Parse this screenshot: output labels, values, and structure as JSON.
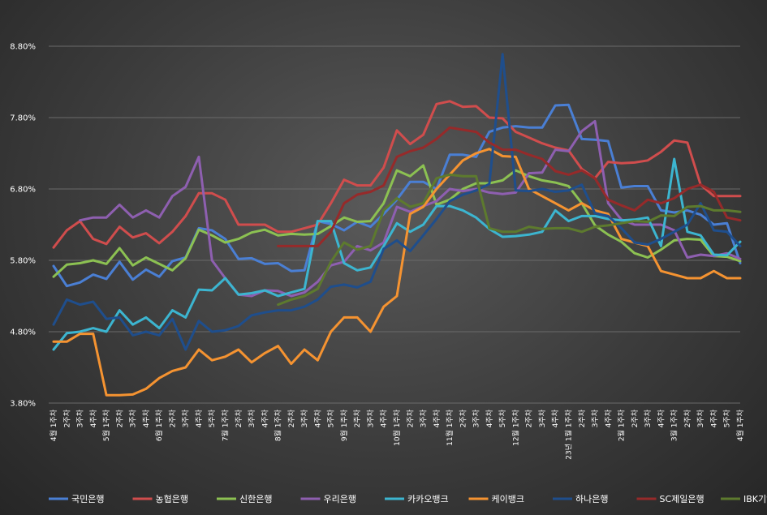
{
  "chart_data": {
    "type": "line",
    "title": "",
    "xlabel": "",
    "ylabel": "",
    "ylim": [
      3.8,
      8.8
    ],
    "yticks": [
      "3.80%",
      "4.80%",
      "5.80%",
      "6.80%",
      "7.80%",
      "8.80%"
    ],
    "grid": true,
    "legend_position": "bottom",
    "x": [
      "4월 1주차",
      "2주차",
      "3주차",
      "4주차",
      "5월 1주차",
      "2주차",
      "3주차",
      "4주차",
      "6월 1주차",
      "2주차",
      "3주차",
      "4주차",
      "5주차",
      "7월 1주차",
      "2주차",
      "3주차",
      "4주차",
      "8월 1주차",
      "2주차",
      "3주차",
      "4주차",
      "5주차",
      "9월 1주차",
      "2주차",
      "3주차",
      "4주차",
      "10월 1주차",
      "2주차",
      "3주차",
      "4주차",
      "11월 1주차",
      "2주차",
      "3주차",
      "4주차",
      "5주차",
      "12월 1주차",
      "2주차",
      "3주차",
      "4주차",
      "23년 1월 1주차",
      "2주차",
      "3주차",
      "4주차",
      "2월 1주차",
      "2주차",
      "3주차",
      "4주차",
      "3월 1주차",
      "2주차",
      "3주차",
      "4주차",
      "5주차",
      "4월 1주차"
    ],
    "series": [
      {
        "name": "국민은행",
        "color": "#4a7fd4",
        "values": [
          5.72,
          5.44,
          5.49,
          5.6,
          5.54,
          5.78,
          5.53,
          5.67,
          5.57,
          5.79,
          5.84,
          6.25,
          6.22,
          6.1,
          5.82,
          5.83,
          5.75,
          5.76,
          5.65,
          5.66,
          6.35,
          6.31,
          6.22,
          6.34,
          6.27,
          6.45,
          6.65,
          6.9,
          6.9,
          6.8,
          7.28,
          7.28,
          7.25,
          7.6,
          7.66,
          7.68,
          7.66,
          7.66,
          7.97,
          7.98,
          7.5,
          7.49,
          7.47,
          6.82,
          6.84,
          6.84,
          6.5,
          6.47,
          6.5,
          6.44,
          6.3,
          6.32,
          5.76
        ]
      },
      {
        "name": "농협은행",
        "color": "#d04d4d",
        "values": [
          5.98,
          6.22,
          6.35,
          6.1,
          6.03,
          6.27,
          6.12,
          6.18,
          6.04,
          6.2,
          6.42,
          6.74,
          6.74,
          6.65,
          6.3,
          6.3,
          6.3,
          6.2,
          6.2,
          6.25,
          6.3,
          6.6,
          6.93,
          6.85,
          6.85,
          7.1,
          7.62,
          7.43,
          7.56,
          7.99,
          8.03,
          7.95,
          7.96,
          7.8,
          7.79,
          7.6,
          7.52,
          7.44,
          7.38,
          7.34,
          7.08,
          6.95,
          7.18,
          7.16,
          7.17,
          7.2,
          7.32,
          7.48,
          7.45,
          6.86,
          6.7,
          6.7,
          6.7
        ]
      },
      {
        "name": "신한은행",
        "color": "#8cc152",
        "values": [
          5.57,
          5.74,
          5.76,
          5.8,
          5.75,
          5.97,
          5.73,
          5.84,
          5.75,
          5.66,
          5.83,
          6.23,
          6.15,
          6.05,
          6.1,
          6.19,
          6.23,
          6.15,
          6.17,
          6.16,
          6.17,
          6.28,
          6.4,
          6.34,
          6.35,
          6.6,
          7.06,
          6.98,
          7.13,
          6.58,
          6.65,
          6.8,
          6.88,
          6.88,
          6.92,
          7.06,
          6.98,
          6.92,
          6.89,
          6.84,
          6.6,
          6.29,
          6.16,
          6.06,
          5.9,
          5.84,
          5.95,
          6.08,
          6.1,
          6.09,
          5.86,
          5.85,
          5.79
        ]
      },
      {
        "name": "우리은행",
        "color": "#8e5fb0",
        "values": [
          null,
          null,
          6.36,
          6.4,
          6.4,
          6.58,
          6.4,
          6.5,
          6.4,
          6.7,
          6.83,
          7.25,
          5.8,
          5.55,
          5.32,
          5.3,
          5.38,
          5.37,
          5.3,
          5.35,
          5.5,
          5.73,
          5.78,
          6.0,
          5.94,
          6.05,
          6.55,
          6.48,
          6.56,
          6.63,
          6.8,
          6.77,
          6.8,
          6.75,
          6.73,
          6.75,
          7.02,
          7.03,
          7.35,
          7.33,
          7.61,
          7.75,
          6.6,
          6.37,
          6.3,
          6.3,
          6.3,
          6.22,
          5.84,
          5.88,
          5.86,
          5.9,
          5.82
        ]
      },
      {
        "name": "카카오뱅크",
        "color": "#3cb5d0",
        "values": [
          4.55,
          4.78,
          4.8,
          4.85,
          4.8,
          5.1,
          4.9,
          5.0,
          4.85,
          5.1,
          5.0,
          5.39,
          5.38,
          5.55,
          5.32,
          5.34,
          5.38,
          5.3,
          5.35,
          5.4,
          6.35,
          6.35,
          5.76,
          5.66,
          5.7,
          6.0,
          6.32,
          6.2,
          6.3,
          6.56,
          6.56,
          6.5,
          6.4,
          6.24,
          6.13,
          6.14,
          6.16,
          6.2,
          6.5,
          6.35,
          6.42,
          6.42,
          6.38,
          6.36,
          6.37,
          6.4,
          6.0,
          7.22,
          6.2,
          6.15,
          5.88,
          5.87,
          6.06
        ]
      },
      {
        "name": "케이뱅크",
        "color": "#f59331",
        "values": [
          4.66,
          4.66,
          4.77,
          4.77,
          3.91,
          3.91,
          3.92,
          4.0,
          4.15,
          4.25,
          4.3,
          4.55,
          4.4,
          4.45,
          4.55,
          4.37,
          4.5,
          4.6,
          4.35,
          4.55,
          4.4,
          4.8,
          5.0,
          5.0,
          4.8,
          5.15,
          5.3,
          6.45,
          6.55,
          6.8,
          7.0,
          7.2,
          7.3,
          7.36,
          7.26,
          7.25,
          6.8,
          6.7,
          6.6,
          6.5,
          6.6,
          6.5,
          6.45,
          6.1,
          6.05,
          6.0,
          5.65,
          5.6,
          5.55,
          5.55,
          5.65,
          5.55,
          5.55
        ]
      },
      {
        "name": "하나은행",
        "color": "#1f4e8c",
        "values": [
          4.9,
          5.25,
          5.18,
          5.22,
          4.98,
          5.0,
          4.75,
          4.8,
          4.75,
          4.98,
          4.55,
          4.95,
          4.8,
          4.82,
          4.88,
          5.03,
          5.07,
          5.1,
          5.1,
          5.15,
          5.25,
          5.43,
          5.46,
          5.42,
          5.5,
          5.96,
          6.08,
          5.93,
          6.15,
          6.38,
          6.63,
          6.72,
          6.78,
          6.87,
          8.69,
          6.78,
          6.77,
          6.8,
          6.76,
          6.78,
          6.86,
          6.46,
          6.42,
          6.25,
          6.05,
          6.02,
          6.1,
          6.2,
          6.3,
          6.6,
          6.22,
          6.2,
          6.0
        ]
      },
      {
        "name": "SC제일은행",
        "color": "#962a2a",
        "values": [
          null,
          null,
          null,
          null,
          null,
          null,
          null,
          null,
          null,
          null,
          null,
          null,
          null,
          null,
          null,
          null,
          null,
          6.0,
          6.0,
          6.0,
          6.0,
          6.2,
          6.6,
          6.72,
          6.76,
          6.85,
          7.25,
          7.33,
          7.38,
          7.5,
          7.66,
          7.63,
          7.6,
          7.45,
          7.35,
          7.35,
          7.28,
          7.22,
          7.05,
          7.0,
          7.06,
          6.95,
          6.65,
          6.57,
          6.5,
          6.65,
          6.6,
          6.67,
          6.8,
          6.86,
          6.76,
          6.4,
          6.36
        ]
      },
      {
        "name": "IBK기업은행",
        "color": "#5d7a2e",
        "values": [
          null,
          null,
          null,
          null,
          null,
          null,
          null,
          null,
          null,
          null,
          null,
          null,
          null,
          null,
          null,
          null,
          null,
          5.18,
          5.25,
          5.3,
          5.4,
          5.78,
          6.05,
          5.95,
          6.0,
          6.5,
          6.67,
          6.55,
          6.6,
          6.95,
          7.0,
          6.98,
          6.98,
          6.25,
          6.2,
          6.2,
          6.27,
          6.24,
          6.25,
          6.25,
          6.2,
          6.27,
          6.29,
          6.32,
          6.35,
          6.34,
          6.43,
          6.42,
          6.55,
          6.56,
          6.5,
          6.5,
          6.48
        ]
      }
    ]
  }
}
